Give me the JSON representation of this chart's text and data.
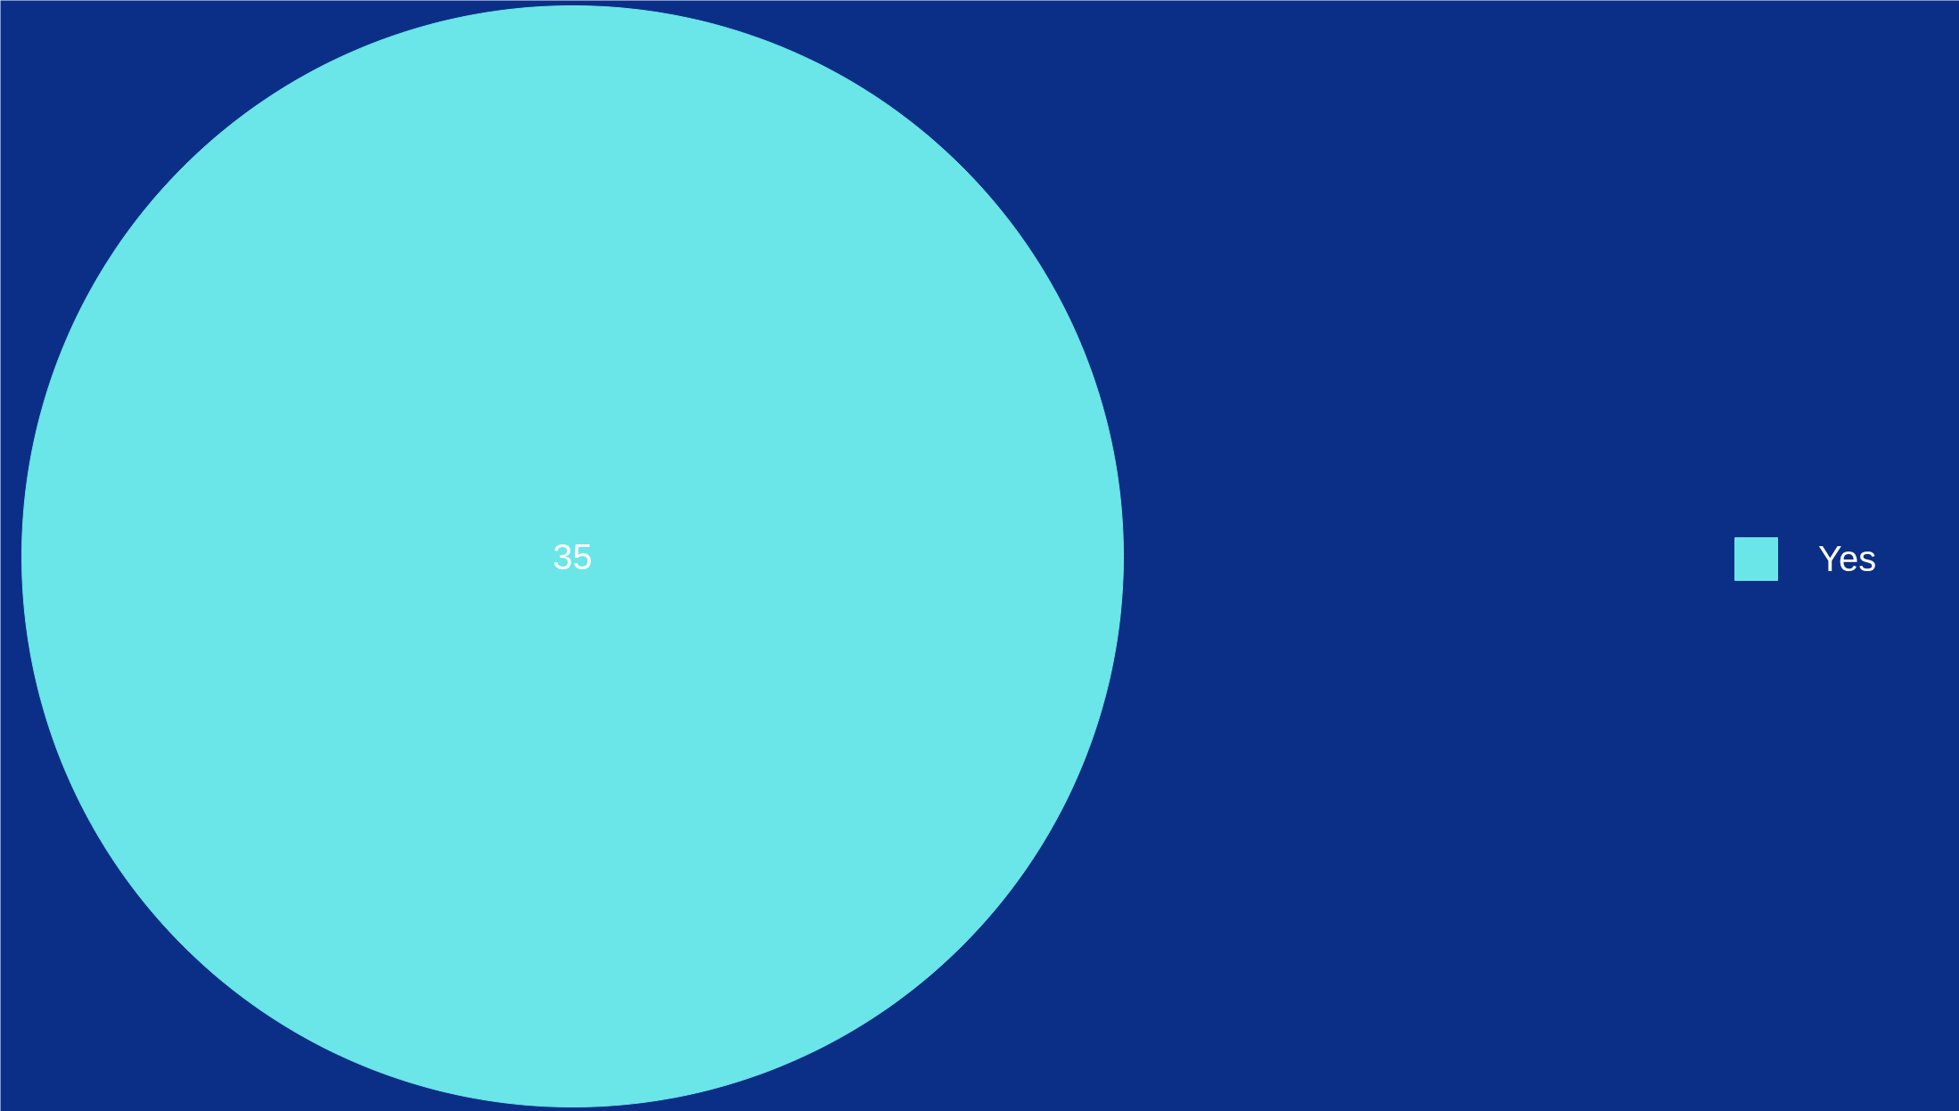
{
  "chart_data": {
    "type": "pie",
    "categories": [
      "Yes"
    ],
    "values": [
      35
    ],
    "colors": [
      "#6ae6e8"
    ],
    "data_labels": true,
    "legend": "right"
  }
}
